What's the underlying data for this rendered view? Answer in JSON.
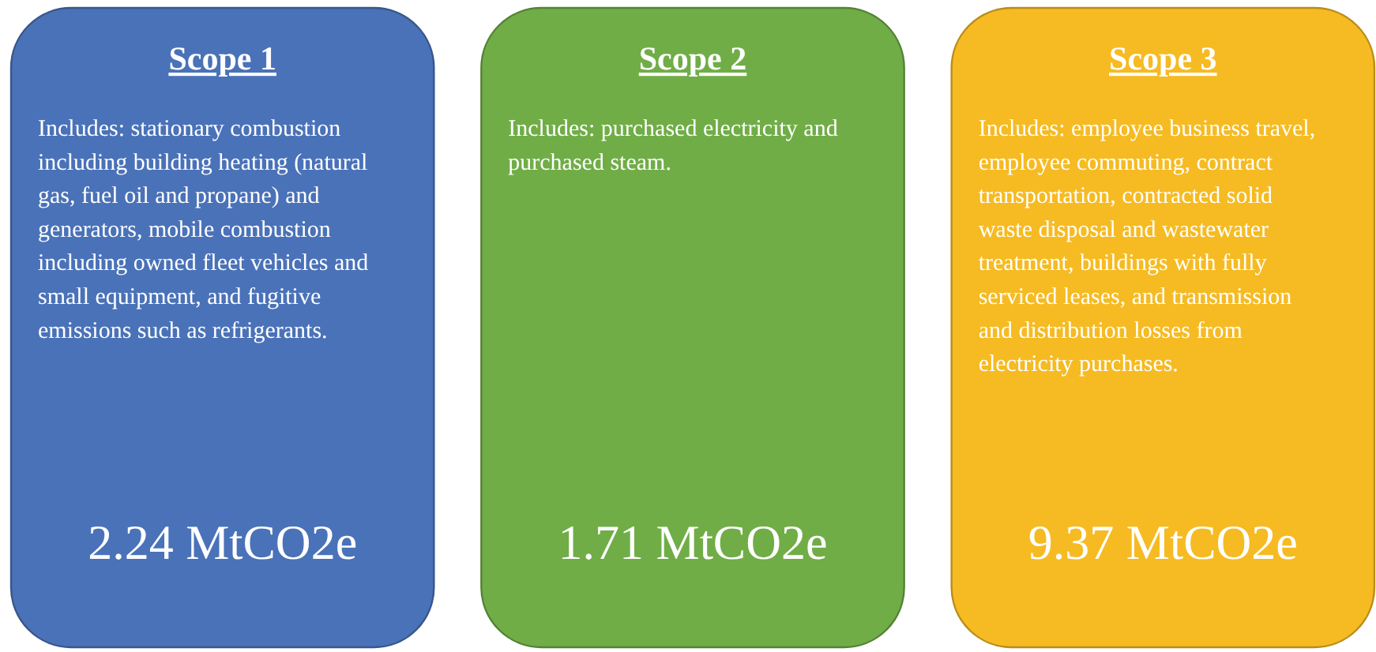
{
  "chart_data": {
    "type": "other",
    "categories": [
      "Scope 1",
      "Scope 2",
      "Scope 3"
    ],
    "values": [
      2.24,
      1.71,
      9.37
    ],
    "value_labels": [
      "2.24 MtCO2e",
      "1.71 MtCO2e",
      "9.37 MtCO2e"
    ],
    "colors": [
      "#4a72b8",
      "#70ad47",
      "#f6bb22"
    ],
    "annotations": [
      "Includes: stationary combustion including building heating (natural gas, fuel oil and propane) and generators, mobile combustion including owned fleet vehicles and small equipment, and fugitive emissions such as refrigerants.",
      "Includes: purchased electricity and purchased steam.",
      "Includes: employee business travel, employee commuting, contract transportation, contracted solid waste disposal and wastewater treatment, buildings with fully serviced leases, and transmission and distribution losses from electricity purchases."
    ]
  }
}
